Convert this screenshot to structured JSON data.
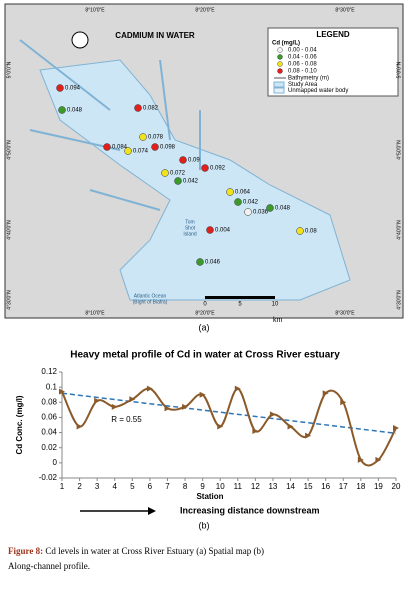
{
  "map": {
    "title": "CADMIUM IN WATER",
    "legend_title": "LEGEND",
    "unit": "Cd  (mg/L)",
    "legend": [
      {
        "label": "0.00 - 0.04",
        "color": "#f2f2f2"
      },
      {
        "label": "0.04 - 0.06",
        "color": "#3a9a2a"
      },
      {
        "label": "0.06 - 0.08",
        "color": "#f2e21c"
      },
      {
        "label": "0.08 - 0.10",
        "color": "#e0201c"
      }
    ],
    "bathymetry": "Bathymetry (m)",
    "study_area": "Study Area",
    "unmapped": "Unmapped water body",
    "lon_labels": [
      "8°10'0\"E",
      "8°20'0\"E",
      "8°30'0\"E"
    ],
    "lat_labels": [
      "5°0'0\"N",
      "4°50'0\"N",
      "4°40'0\"N",
      "4°30'0\"N"
    ],
    "stations": [
      0.094,
      0.048,
      0.082,
      0.078,
      0.084,
      0.074,
      0.098,
      0.09,
      0.092,
      0.072,
      0.042,
      0.064,
      0.042,
      0.036,
      0.048,
      0.004,
      0.08,
      0.046
    ],
    "scale": [
      "0",
      "5",
      "10"
    ],
    "scale_unit": "km",
    "ocean": "Atlantic Ocean\n(Bight of Biafra)",
    "island": "Tom\nShot\nIsland",
    "panel": "(a)"
  },
  "chart_data": {
    "type": "line",
    "title": "Heavy metal profile of Cd in water at Cross River estuary",
    "xlabel": "Station",
    "ylabel": "Cd Conc. (mg/l)",
    "x": [
      1,
      2,
      3,
      4,
      5,
      6,
      7,
      8,
      9,
      10,
      11,
      12,
      13,
      14,
      15,
      16,
      17,
      18,
      19,
      20
    ],
    "series": [
      {
        "name": "Cd",
        "color": "#8b5a2b",
        "values": [
          0.094,
          0.048,
          0.082,
          0.074,
          0.084,
          0.098,
          0.072,
          0.074,
          0.09,
          0.048,
          0.098,
          0.042,
          0.064,
          0.048,
          0.036,
          0.092,
          0.08,
          0.004,
          0.004,
          0.046
        ]
      }
    ],
    "trendline": {
      "x": [
        1,
        20
      ],
      "values": [
        0.092,
        0.039
      ],
      "color": "#2e75b6",
      "label": "R = 0.55"
    },
    "xlim": [
      1,
      20
    ],
    "xticks": [
      1,
      2,
      3,
      4,
      5,
      6,
      7,
      8,
      9,
      10,
      11,
      12,
      13,
      14,
      15,
      16,
      17,
      18,
      19,
      20
    ],
    "ylim": [
      -0.02,
      0.12
    ],
    "yticks": [
      -0.02,
      0,
      0.02,
      0.04,
      0.06,
      0.08,
      0.1,
      0.12
    ]
  },
  "annotation": "Increasing distance downstream",
  "panel_b": "(b)",
  "caption": {
    "label": "Figure 8:",
    "text": " Cd levels in water at Cross River Estuary (a) Spatial map (b)",
    "text2": "Along-channel profile."
  }
}
